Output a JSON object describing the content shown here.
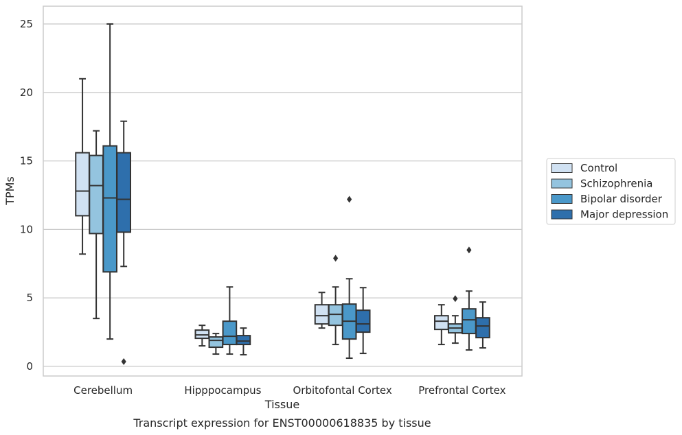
{
  "chart_data": {
    "type": "box",
    "caption": "Transcript expression for ENST00000618835 by tissue",
    "xlabel": "Tissue",
    "ylabel": "TPMs",
    "ylim": [
      -0.7,
      26.3
    ],
    "yticks": [
      0,
      5,
      10,
      15,
      20,
      25
    ],
    "grid": true,
    "legend_position": "right",
    "categories": [
      "Cerebellum",
      "Hipppocampus",
      "Orbitofontal Cortex",
      "Prefrontal Cortex"
    ],
    "series": [
      {
        "name": "Control",
        "color": "#d0e1f2",
        "boxes": [
          {
            "whislo": 8.2,
            "q1": 11.0,
            "med": 12.8,
            "q3": 15.6,
            "whishi": 21.0,
            "fliers": []
          },
          {
            "whislo": 1.5,
            "q1": 2.05,
            "med": 2.3,
            "q3": 2.65,
            "whislo_note": "",
            "whishi": 3.0,
            "fliers": []
          },
          {
            "whislo": 2.8,
            "q1": 3.1,
            "med": 3.7,
            "q3": 4.5,
            "whishi": 5.4,
            "fliers": []
          },
          {
            "whislo": 1.6,
            "q1": 2.7,
            "med": 3.3,
            "q3": 3.7,
            "whishi": 4.5,
            "fliers": []
          }
        ]
      },
      {
        "name": "Schizophrenia",
        "color": "#94c4df",
        "boxes": [
          {
            "whislo": 3.5,
            "q1": 9.7,
            "med": 13.2,
            "q3": 15.4,
            "whishi": 17.2,
            "fliers": []
          },
          {
            "whislo": 0.9,
            "q1": 1.4,
            "med": 1.9,
            "q3": 2.15,
            "whishi": 2.4,
            "fliers": []
          },
          {
            "whislo": 1.6,
            "q1": 3.0,
            "med": 3.8,
            "q3": 4.5,
            "whishi": 5.8,
            "fliers": [
              7.9
            ]
          },
          {
            "whislo": 1.7,
            "q1": 2.45,
            "med": 2.8,
            "q3": 3.1,
            "whishi": 3.7,
            "fliers": [
              4.95
            ]
          }
        ]
      },
      {
        "name": "Bipolar disorder",
        "color": "#4a98c9",
        "boxes": [
          {
            "whislo": 2.0,
            "q1": 6.9,
            "med": 12.3,
            "q3": 16.1,
            "whishi": 25.0,
            "fliers": []
          },
          {
            "whislo": 0.9,
            "q1": 1.6,
            "med": 2.2,
            "q3": 3.3,
            "whishi": 5.8,
            "fliers": []
          },
          {
            "whislo": 0.6,
            "q1": 2.0,
            "med": 3.3,
            "q3": 4.55,
            "whishi": 6.4,
            "fliers": [
              12.2
            ]
          },
          {
            "whislo": 1.2,
            "q1": 2.4,
            "med": 3.4,
            "q3": 4.2,
            "whishi": 5.5,
            "fliers": [
              8.5
            ]
          }
        ]
      },
      {
        "name": "Major depression",
        "color": "#2e6fac",
        "boxes": [
          {
            "whislo": 7.3,
            "q1": 9.8,
            "med": 12.2,
            "q3": 15.6,
            "whishi": 17.9,
            "fliers": [
              0.35
            ]
          },
          {
            "whislo": 0.85,
            "q1": 1.6,
            "med": 1.85,
            "q3": 2.25,
            "whishi": 2.8,
            "fliers": []
          },
          {
            "whislo": 0.95,
            "q1": 2.5,
            "med": 3.1,
            "q3": 4.1,
            "whishi": 5.75,
            "fliers": []
          },
          {
            "whislo": 1.35,
            "q1": 2.1,
            "med": 2.95,
            "q3": 3.55,
            "whishi": 4.7,
            "fliers": []
          }
        ]
      }
    ]
  }
}
